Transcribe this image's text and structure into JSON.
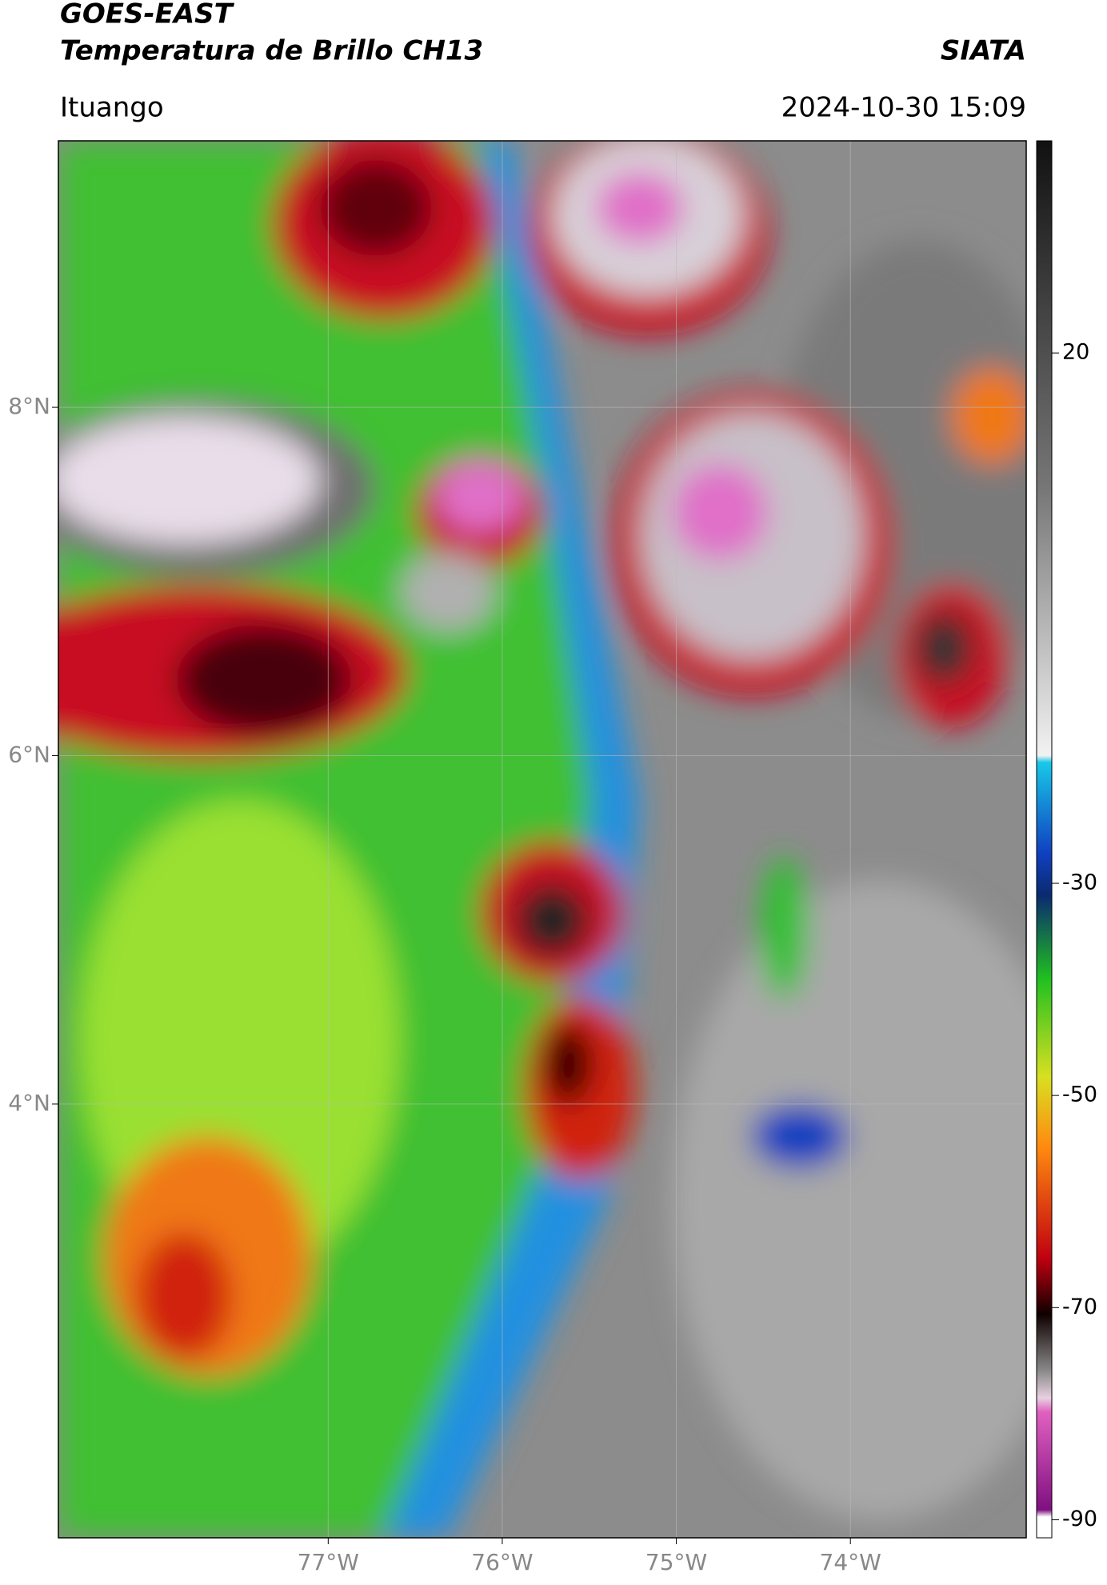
{
  "header": {
    "title": "GOES-EAST",
    "subtitle": "Temperatura de Brillo CH13",
    "source": "SIATA",
    "location": "Ituango",
    "timestamp": "2024-10-30 15:09"
  },
  "map": {
    "lonlim": [
      -78.55,
      -72.99
    ],
    "latlim": [
      1.51,
      9.53
    ],
    "lonticks": [
      {
        "value": -77,
        "label": "77°W"
      },
      {
        "value": -76,
        "label": "76°W"
      },
      {
        "value": -75,
        "label": "75°W"
      },
      {
        "value": -74,
        "label": "74°W"
      }
    ],
    "latticks": [
      {
        "value": 8,
        "label": "8°N"
      },
      {
        "value": 6,
        "label": "6°N"
      },
      {
        "value": 4,
        "label": "4°N"
      }
    ],
    "grid": true
  },
  "colorbar": {
    "lim": [
      -91.7,
      40
    ],
    "ticks": [
      20,
      -30,
      -50,
      -70,
      -90
    ]
  }
}
